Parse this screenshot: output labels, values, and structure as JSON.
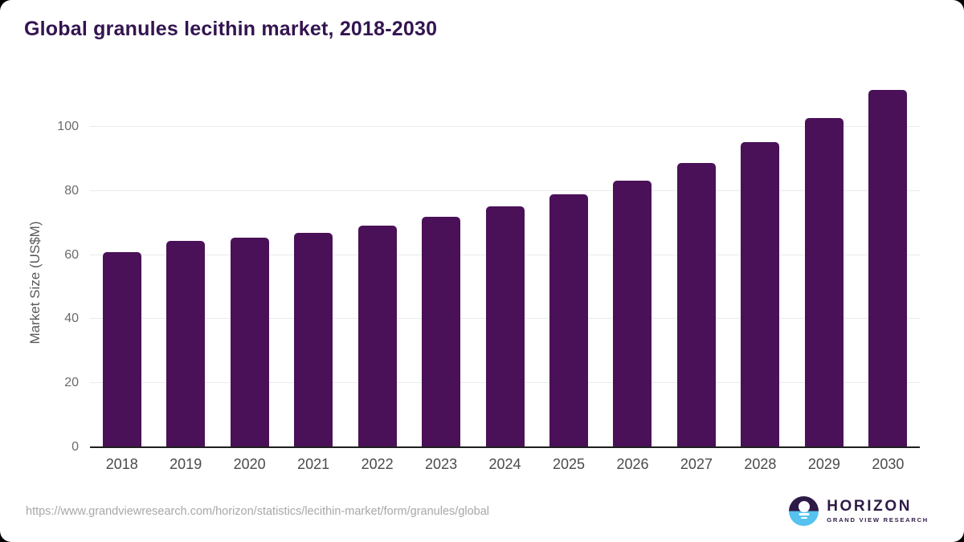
{
  "title": "Global granules lecithin market, 2018-2030",
  "source_url": "https://www.grandviewresearch.com/horizon/statistics/lecithin-market/form/granules/global",
  "branding": {
    "name": "HORIZON",
    "subtitle": "GRAND VIEW RESEARCH",
    "icon": "horizon-sunset-icon"
  },
  "colors": {
    "bar": "#4a1158",
    "title": "#331450",
    "axis_line": "#1f1f1f",
    "gridline": "#eaeaea",
    "y_tick_label": "#6b6b6b",
    "x_tick_label": "#4a4a4a",
    "source_url": "#a8a8a8",
    "logo_purple": "#2e1a47",
    "logo_blue": "#56c2ef",
    "background": "#ffffff"
  },
  "chart_data": {
    "type": "bar",
    "title": "Global granules lecithin market, 2018-2030",
    "categories": [
      "2018",
      "2019",
      "2020",
      "2021",
      "2022",
      "2023",
      "2024",
      "2025",
      "2026",
      "2027",
      "2028",
      "2029",
      "2030"
    ],
    "values": [
      61.0,
      64.3,
      65.3,
      67.0,
      69.1,
      71.8,
      75.1,
      78.9,
      83.2,
      88.7,
      95.2,
      102.7,
      111.5
    ],
    "xlabel": "",
    "ylabel": "Market Size (US$M)",
    "yticks": [
      0,
      20,
      40,
      60,
      80,
      100
    ],
    "ylim": [
      0,
      115
    ],
    "grid": "horizontal",
    "legend": "none",
    "bar_color": "#4a1158"
  }
}
